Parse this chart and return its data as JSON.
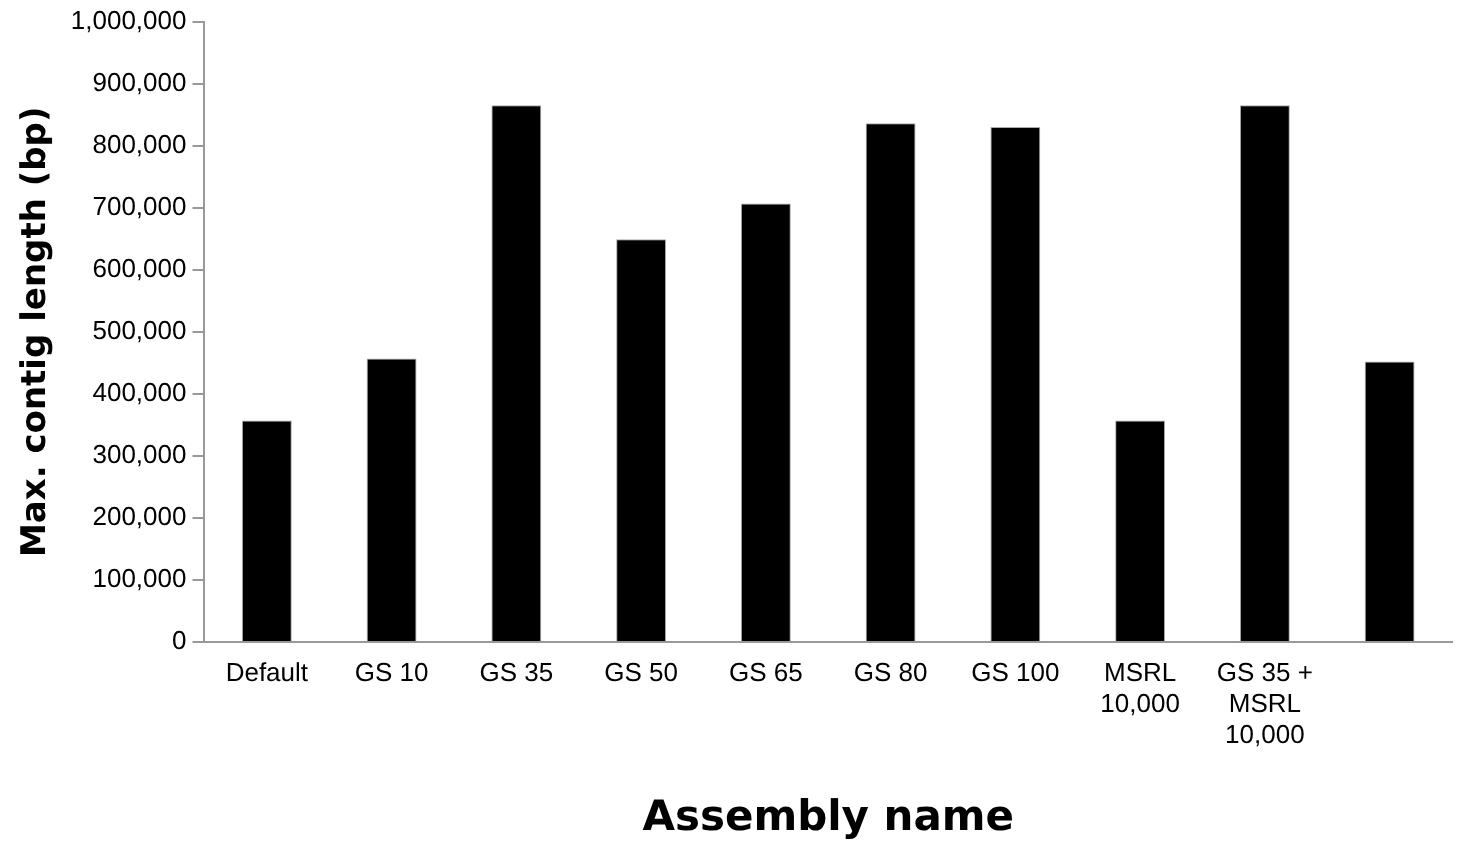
{
  "chart_data": {
    "type": "bar",
    "xlabel": "Assembly name",
    "ylabel": "Max. contig length (bp)",
    "categories": [
      "Default",
      "GS 10",
      "GS 35",
      "GS 50",
      "GS 65",
      "GS 80",
      "GS 100",
      "MSRL 10,000",
      "GS 35 + MSRL 10,000",
      null
    ],
    "values": [
      357000,
      457000,
      865000,
      649000,
      707000,
      836000,
      830000,
      357000,
      865000,
      452000
    ],
    "color": "#000000",
    "ylim": [
      0,
      1000000
    ],
    "yticks": [
      {
        "value": 0,
        "label": "0"
      },
      {
        "value": 100000,
        "label": "100,000"
      },
      {
        "value": 200000,
        "label": "200,000"
      },
      {
        "value": 300000,
        "label": "300,000"
      },
      {
        "value": 400000,
        "label": "400,000"
      },
      {
        "value": 500000,
        "label": "500,000"
      },
      {
        "value": 600000,
        "label": "600,000"
      },
      {
        "value": 700000,
        "label": "700,000"
      },
      {
        "value": 800000,
        "label": "800,000"
      },
      {
        "value": 900000,
        "label": "900,000"
      },
      {
        "value": 1000000,
        "label": "1,000,000"
      }
    ],
    "grid": false,
    "legend": false
  }
}
